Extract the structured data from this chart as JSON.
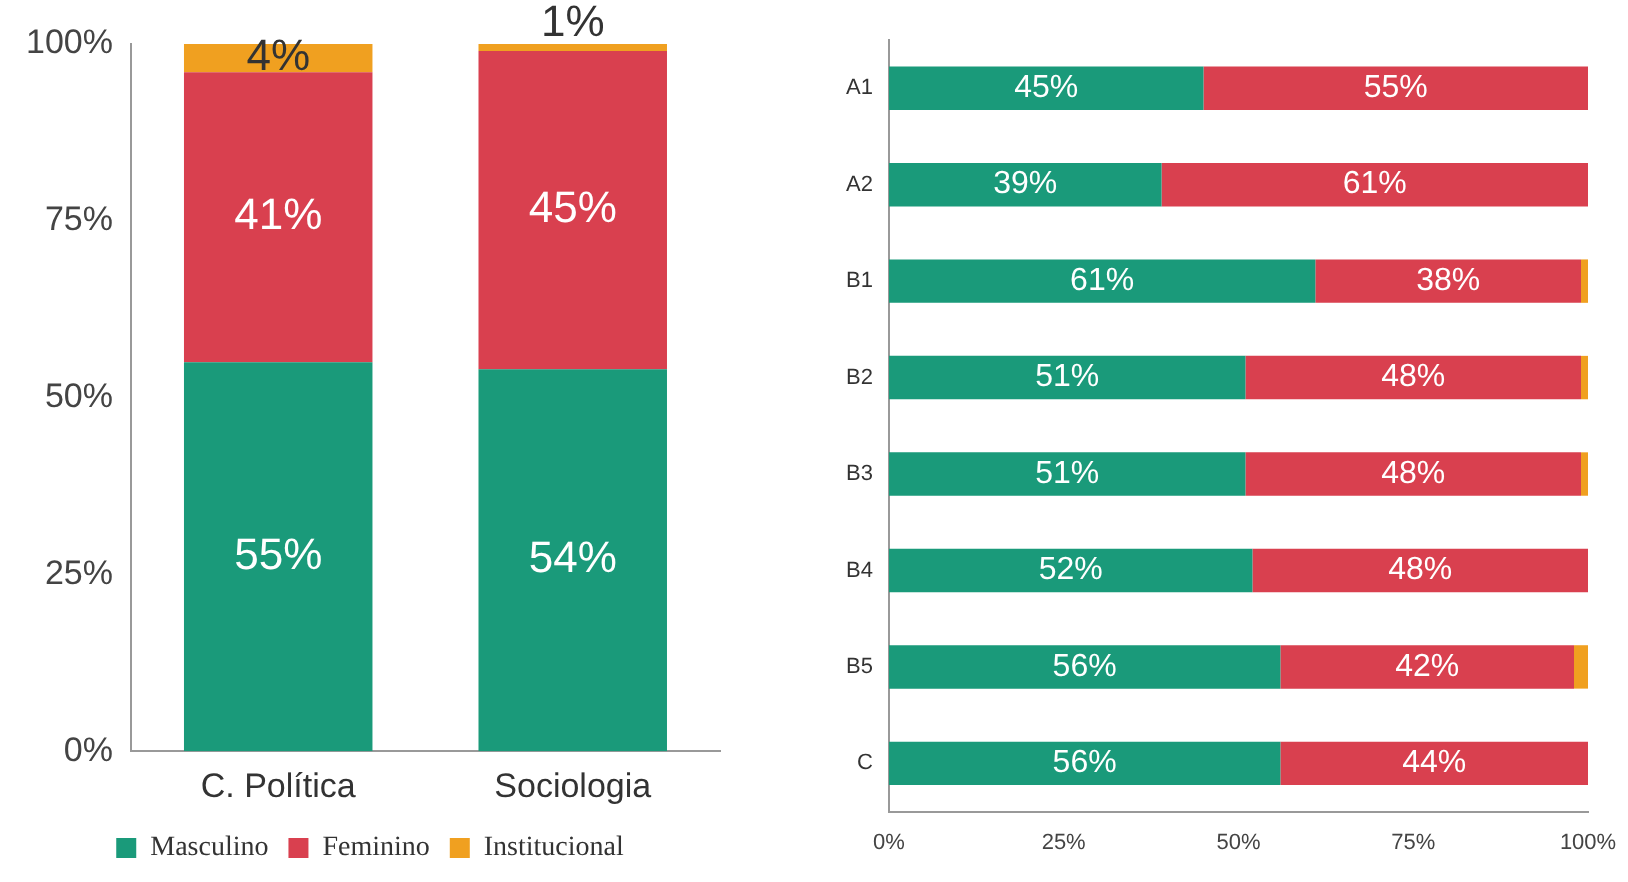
{
  "chart_data": [
    {
      "type": "bar",
      "stacked": true,
      "categories": [
        "C. Política",
        "Sociologia"
      ],
      "series": [
        {
          "name": "Masculino",
          "color": "#1a9a7a",
          "values": [
            55,
            54
          ],
          "value_labels": [
            "55%",
            "54%"
          ]
        },
        {
          "name": "Feminino",
          "color": "#d9404f",
          "values": [
            41,
            45
          ],
          "value_labels": [
            "41%",
            "45%"
          ]
        },
        {
          "name": "Institucional",
          "color": "#f0a020",
          "values": [
            4,
            1
          ],
          "value_labels": [
            "4%",
            "1%"
          ]
        }
      ],
      "ylim": [
        0,
        100
      ],
      "yticks": [
        {
          "value": 0,
          "label": "0%"
        },
        {
          "value": 25,
          "label": "25%"
        },
        {
          "value": 50,
          "label": "50%"
        },
        {
          "value": 75,
          "label": "75%"
        },
        {
          "value": 100,
          "label": "100%"
        }
      ],
      "legend": "bottom"
    },
    {
      "type": "bar",
      "stacked": true,
      "orientation": "horizontal",
      "categories": [
        "A1",
        "A2",
        "B1",
        "B2",
        "B3",
        "B4",
        "B5",
        "C"
      ],
      "series": [
        {
          "color": "#1a9a7a",
          "values": [
            45,
            39,
            61,
            51,
            51,
            52,
            56,
            56
          ],
          "value_labels": [
            "45%",
            "39%",
            "61%",
            "51%",
            "51%",
            "52%",
            "56%",
            "56%"
          ]
        },
        {
          "color": "#d9404f",
          "values": [
            55,
            61,
            38,
            48,
            48,
            48,
            42,
            44
          ],
          "value_labels": [
            "55%",
            "61%",
            "38%",
            "48%",
            "48%",
            "48%",
            "42%",
            "44%"
          ]
        },
        {
          "color": "#f0a020",
          "values": [
            0,
            0,
            1,
            1,
            1,
            0,
            2,
            0
          ]
        }
      ],
      "xlim": [
        0,
        100
      ],
      "xticks": [
        {
          "value": 0,
          "label": "0%"
        },
        {
          "value": 25,
          "label": "25%"
        },
        {
          "value": 50,
          "label": "50%"
        },
        {
          "value": 75,
          "label": "75%"
        },
        {
          "value": 100,
          "label": "100%"
        }
      ]
    }
  ]
}
